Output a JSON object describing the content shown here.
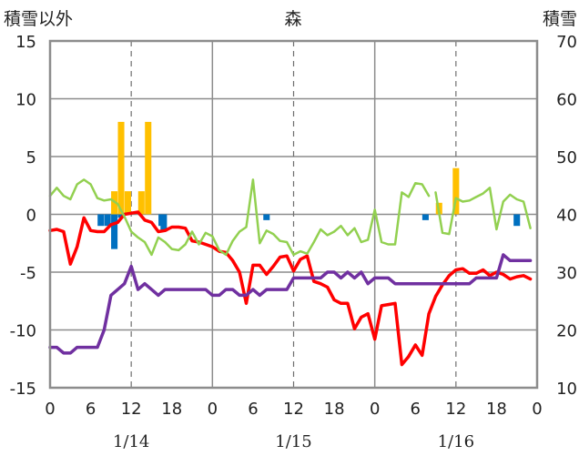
{
  "chart_data": {
    "type": "line",
    "title": "森",
    "left_axis_label": "積雪以外",
    "right_axis_label": "積雪",
    "x_axis": {
      "range_hours": [
        0,
        72
      ],
      "tick_labels": [
        "0",
        "6",
        "12",
        "18",
        "0",
        "6",
        "12",
        "18",
        "0",
        "6",
        "12",
        "18",
        "0"
      ],
      "date_labels": [
        {
          "label": "1/14",
          "hour": 12
        },
        {
          "label": "1/15",
          "hour": 36
        },
        {
          "label": "1/16",
          "hour": 60
        }
      ]
    },
    "y_left": {
      "range": [
        -15,
        15
      ],
      "ticks": [
        15,
        10,
        5,
        0,
        -5,
        -10,
        -15
      ]
    },
    "y_right": {
      "range": [
        10,
        70
      ],
      "ticks": [
        70,
        60,
        50,
        40,
        30,
        20,
        10
      ]
    },
    "grid": {
      "vertical_solid_hours": [
        24,
        48
      ],
      "vertical_dashed_hours": [
        12,
        36,
        60
      ],
      "horizontal_solid_values_left": [
        10,
        5,
        0,
        -5,
        -10
      ]
    },
    "series": [
      {
        "color": "#ff0000",
        "axis": "left",
        "x": [
          0,
          1,
          2,
          3,
          4,
          5,
          6,
          7,
          8,
          9,
          10,
          11,
          12,
          13,
          14,
          15,
          16,
          17,
          18,
          19,
          20,
          21,
          22,
          23,
          24,
          25,
          26,
          27,
          28,
          29,
          30,
          31,
          32,
          33,
          34,
          35,
          36,
          37,
          38,
          39,
          40,
          41,
          42,
          43,
          44,
          45,
          46,
          47,
          48,
          49,
          50,
          51,
          52,
          53,
          54,
          55,
          56,
          57,
          58,
          59,
          60,
          61,
          62,
          63,
          64,
          65,
          66,
          67,
          68,
          69,
          70,
          71
        ],
        "values": [
          -1.4,
          -1.3,
          -1.5,
          -4.3,
          -2.8,
          -0.3,
          -1.4,
          -1.5,
          -1.5,
          -0.9,
          -0.7,
          0,
          0.1,
          0.2,
          -0.5,
          -0.7,
          -1.5,
          -1.4,
          -1.1,
          -1.1,
          -1.2,
          -2.3,
          -2.4,
          -2.6,
          -2.8,
          -3.2,
          -3.3,
          -4.0,
          -5.0,
          -7.7,
          -4.4,
          -4.4,
          -5.2,
          -4.5,
          -3.7,
          -3.6,
          -4.9,
          -3.9,
          -3.6,
          -5.8,
          -6.0,
          -6.3,
          -7.4,
          -7.7,
          -7.7,
          -9.9,
          -8.9,
          -8.6,
          -10.8,
          -7.9,
          -7.8,
          -7.7,
          -13.0,
          -12.3,
          -11.3,
          -12.2,
          -8.6,
          -7.1,
          -6.1,
          -5.3,
          -4.8,
          -4.7,
          -5.1,
          -5.1,
          -4.8,
          -5.3,
          -5.0,
          -5.2,
          -5.6,
          -5.4,
          -5.3,
          -5.6
        ]
      },
      {
        "color": "#92d050",
        "axis": "left",
        "segments": [
          {
            "x": [
              0,
              1,
              2,
              3,
              4,
              5,
              6,
              7,
              8,
              9,
              10,
              11,
              12,
              13,
              14,
              15,
              16,
              17,
              18,
              19,
              20,
              21,
              22,
              23,
              24,
              25,
              26,
              27,
              28,
              29,
              30,
              31,
              32,
              33,
              34,
              35,
              36,
              37,
              38,
              39,
              40,
              41,
              42,
              43,
              44,
              45,
              46,
              47,
              48,
              49,
              50,
              51,
              52,
              53,
              54,
              55,
              56
            ],
            "values": [
              1.6,
              2.3,
              1.6,
              1.3,
              2.6,
              3.0,
              2.6,
              1.4,
              1.2,
              1.3,
              0.9,
              -0.2,
              -1.5,
              -2.0,
              -2.4,
              -3.5,
              -2.0,
              -2.4,
              -3.0,
              -3.1,
              -2.6,
              -1.5,
              -2.6,
              -1.6,
              -1.9,
              -3.1,
              -3.5,
              -2.3,
              -1.5,
              -1.1,
              3.0,
              -2.5,
              -1.4,
              -1.7,
              -2.3,
              -2.4,
              -3.5,
              -3.2,
              -3.4,
              -2.4,
              -1.3,
              -1.8,
              -1.5,
              -1.0,
              -1.8,
              -1.2,
              -2.4,
              -2.2,
              0.4,
              -2.4,
              -2.6,
              -2.6,
              1.9,
              1.5,
              2.7,
              2.6,
              1.6
            ]
          },
          {
            "x": [
              57,
              58,
              59,
              60,
              61,
              62,
              63,
              64,
              65,
              66,
              67,
              68,
              69,
              70,
              71
            ],
            "values": [
              1.9,
              -1.6,
              -1.7,
              1.4,
              1.1,
              1.2,
              1.5,
              1.8,
              2.3,
              -1.3,
              1.1,
              1.7,
              1.3,
              1.1,
              -1.2
            ]
          }
        ]
      },
      {
        "color": "#7030a0",
        "axis": "right",
        "x": [
          0,
          1,
          2,
          3,
          4,
          5,
          6,
          7,
          8,
          9,
          10,
          11,
          12,
          13,
          14,
          15,
          16,
          17,
          18,
          19,
          20,
          21,
          22,
          23,
          24,
          25,
          26,
          27,
          28,
          29,
          30,
          31,
          32,
          33,
          34,
          35,
          36,
          37,
          38,
          39,
          40,
          41,
          42,
          43,
          44,
          45,
          46,
          47,
          48,
          49,
          50,
          51,
          52,
          53,
          54,
          55,
          56,
          57,
          58,
          59,
          60,
          61,
          62,
          63,
          64,
          65,
          66,
          67,
          68,
          69,
          70,
          71
        ],
        "values": [
          17,
          17,
          16,
          16,
          17,
          17,
          17,
          17,
          20,
          26,
          27,
          28,
          31,
          27,
          28,
          27,
          26,
          27,
          27,
          27,
          27,
          27,
          27,
          27,
          26,
          26,
          27,
          27,
          26,
          26,
          27,
          26,
          27,
          27,
          27,
          27,
          29,
          29,
          29,
          29,
          29,
          30,
          30,
          29,
          30,
          29,
          30,
          28,
          29,
          29,
          29,
          28,
          28,
          28,
          28,
          28,
          28,
          28,
          28,
          28,
          28,
          28,
          28,
          29,
          29,
          29,
          29,
          33,
          32,
          32,
          32,
          32
        ]
      }
    ],
    "bars": [
      {
        "color": "#ffc000",
        "axis": "left",
        "x": [
          9.5,
          10.5,
          11.5,
          13.5,
          14.5,
          57.5,
          60
        ],
        "values": [
          2,
          8,
          2,
          2,
          8,
          1,
          4
        ]
      },
      {
        "color": "#0070c0",
        "axis": "left",
        "x": [
          7.5,
          8.5,
          9.5,
          10.5,
          16.5,
          16.8,
          32,
          55.5,
          69
        ],
        "values": [
          -1.0,
          -1.0,
          -3.0,
          -0.3,
          -1.0,
          -1.5,
          -0.5,
          -0.5,
          -1.0
        ]
      }
    ]
  }
}
